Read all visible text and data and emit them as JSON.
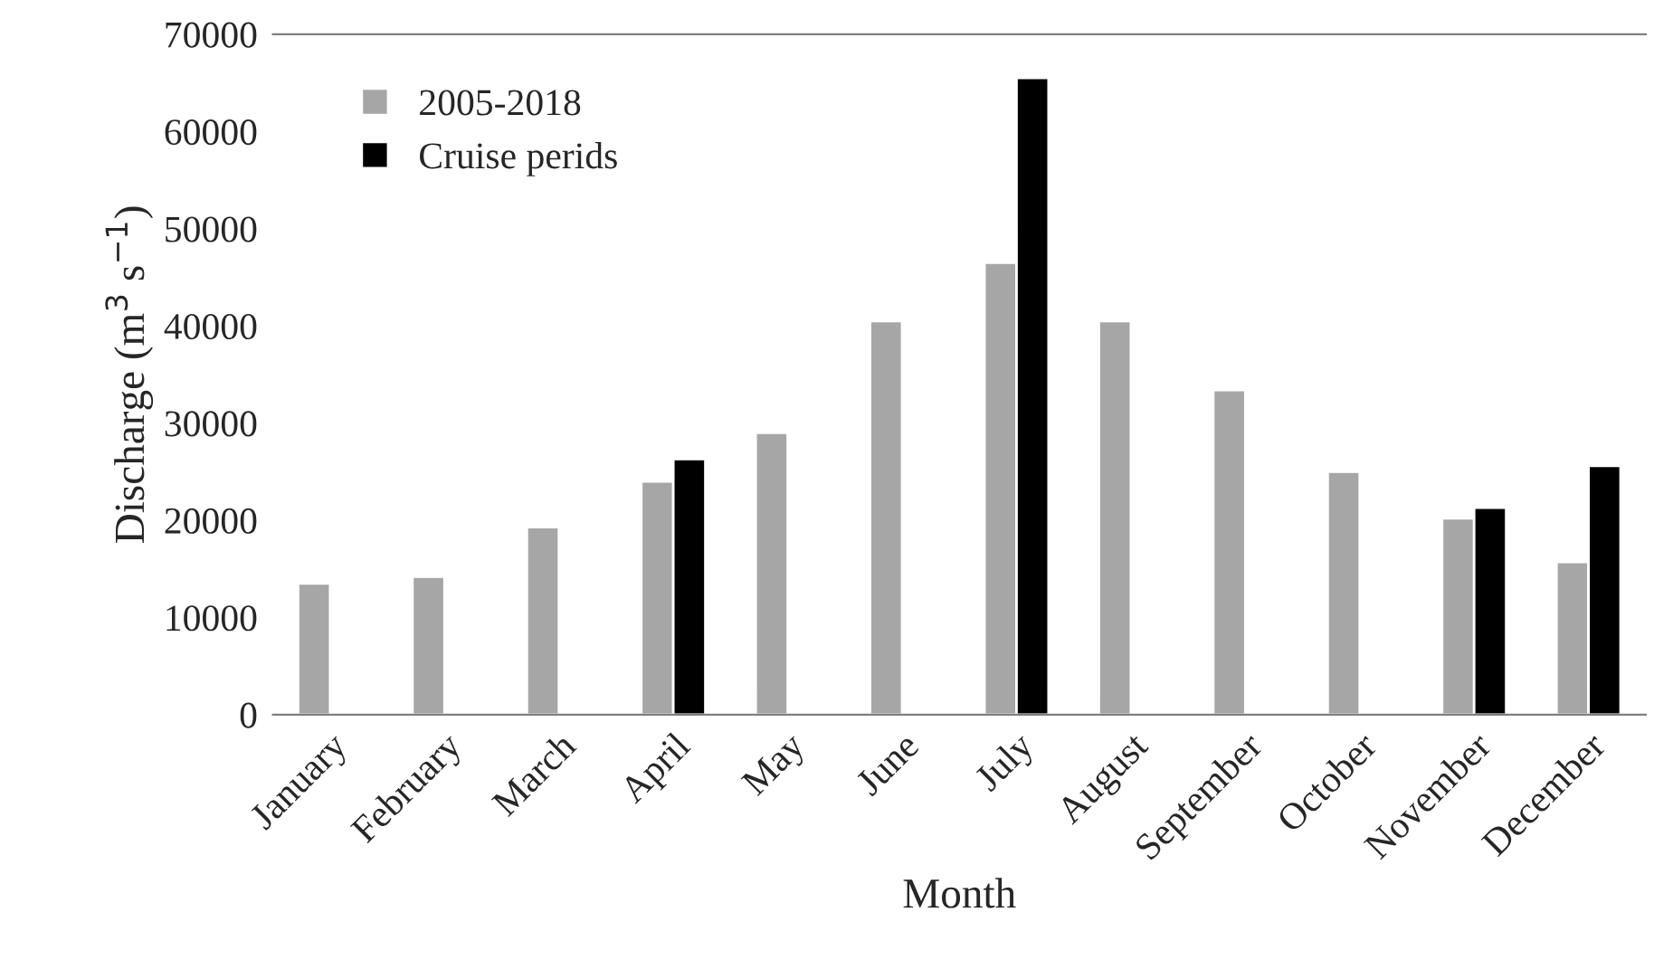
{
  "chart_data": {
    "type": "bar",
    "xlabel": "Month",
    "ylabel": "Discharge (m$^{3}$ s$^{−1}$)",
    "categories": [
      "January",
      "February",
      "March",
      "April",
      "May",
      "June",
      "July",
      "August",
      "September",
      "October",
      "November",
      "December"
    ],
    "series": [
      {
        "name": "2005-2018",
        "color": "#a6a6a6",
        "values": [
          13500,
          14200,
          19300,
          24000,
          29000,
          40500,
          46500,
          40500,
          33400,
          25000,
          20200,
          15700
        ]
      },
      {
        "name": "Cruise perids",
        "color": "#000000",
        "values": [
          null,
          null,
          null,
          26300,
          null,
          null,
          65500,
          null,
          null,
          null,
          21300,
          25600
        ]
      }
    ],
    "ylim": [
      0,
      70000
    ],
    "yticks": [
      0,
      10000,
      20000,
      30000,
      40000,
      50000,
      60000,
      70000
    ],
    "grid": false,
    "legend": "top left"
  }
}
